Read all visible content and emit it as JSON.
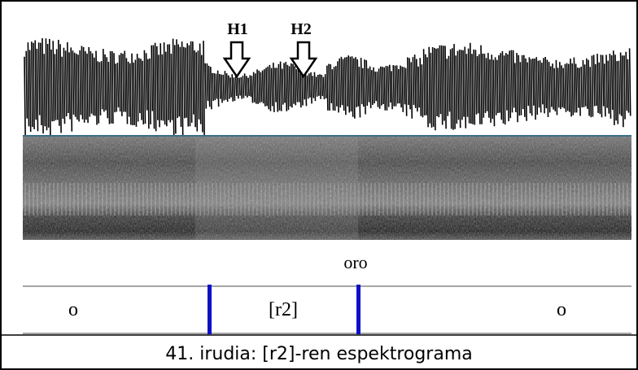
{
  "figure": {
    "markers": [
      {
        "label": "H1"
      },
      {
        "label": "H2"
      }
    ],
    "word": "oro",
    "segments": [
      "o",
      "[r2]",
      "o"
    ],
    "caption": "41. irudia: [r2]-ren espektrograma"
  }
}
